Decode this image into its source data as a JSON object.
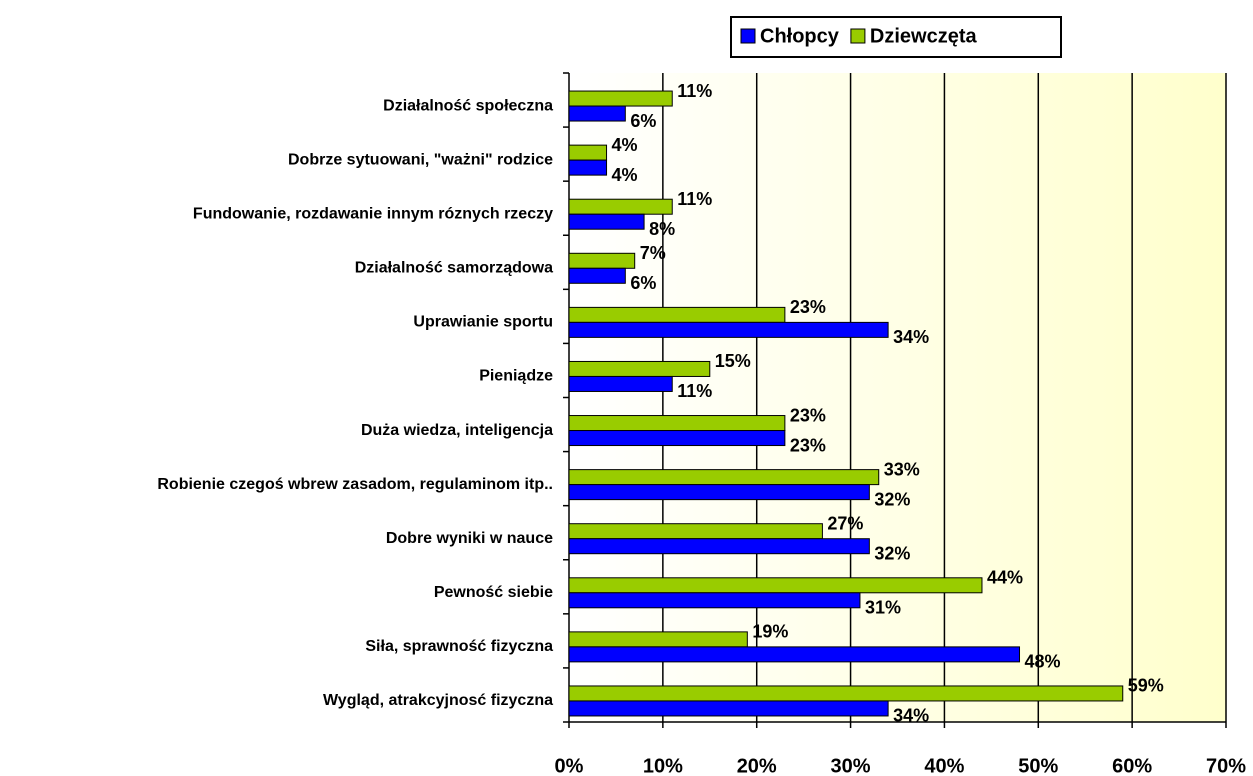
{
  "chart_data": {
    "type": "bar",
    "orientation": "horizontal",
    "categories": [
      "Działalność społeczna",
      "Dobrze sytuowani, \"ważni\" rodzice",
      "Fundowanie, rozdawanie innym róznych rzeczy",
      "Działalność samorządowa",
      "Uprawianie sportu",
      "Pieniądze",
      "Duża wiedza, inteligencja",
      "Robienie czegoś wbrew zasadom, regulaminom itp..",
      "Dobre wyniki w nauce",
      "Pewność siebie",
      "Siła, sprawność fizyczna",
      "Wygląd, atrakcyjnosć fizyczna"
    ],
    "series": [
      {
        "name": "Chłopcy",
        "color": "#0000ff",
        "values": [
          6,
          4,
          8,
          6,
          34,
          11,
          23,
          32,
          32,
          31,
          48,
          34
        ],
        "value_labels": [
          "6%",
          "4%",
          "8%",
          "6%",
          "34%",
          "11%",
          "23%",
          "32%",
          "32%",
          "31%",
          "48%",
          "34%"
        ]
      },
      {
        "name": "Dziewczęta",
        "color": "#99cc00",
        "values": [
          11,
          4,
          11,
          7,
          23,
          15,
          23,
          33,
          27,
          44,
          19,
          59
        ],
        "value_labels": [
          "11%",
          "4%",
          "11%",
          "7%",
          "23%",
          "15%",
          "23%",
          "33%",
          "27%",
          "44%",
          "19%",
          "59%"
        ]
      }
    ],
    "xlim": [
      0,
      70
    ],
    "xticks": [
      {
        "value": 0,
        "label": "0%"
      },
      {
        "value": 10,
        "label": "10%"
      },
      {
        "value": 20,
        "label": "20%"
      },
      {
        "value": 30,
        "label": "30%"
      },
      {
        "value": 40,
        "label": "40%"
      },
      {
        "value": 50,
        "label": "50%"
      },
      {
        "value": 60,
        "label": "60%"
      },
      {
        "value": 70,
        "label": "70%"
      }
    ],
    "grid": true,
    "legend": "top"
  }
}
